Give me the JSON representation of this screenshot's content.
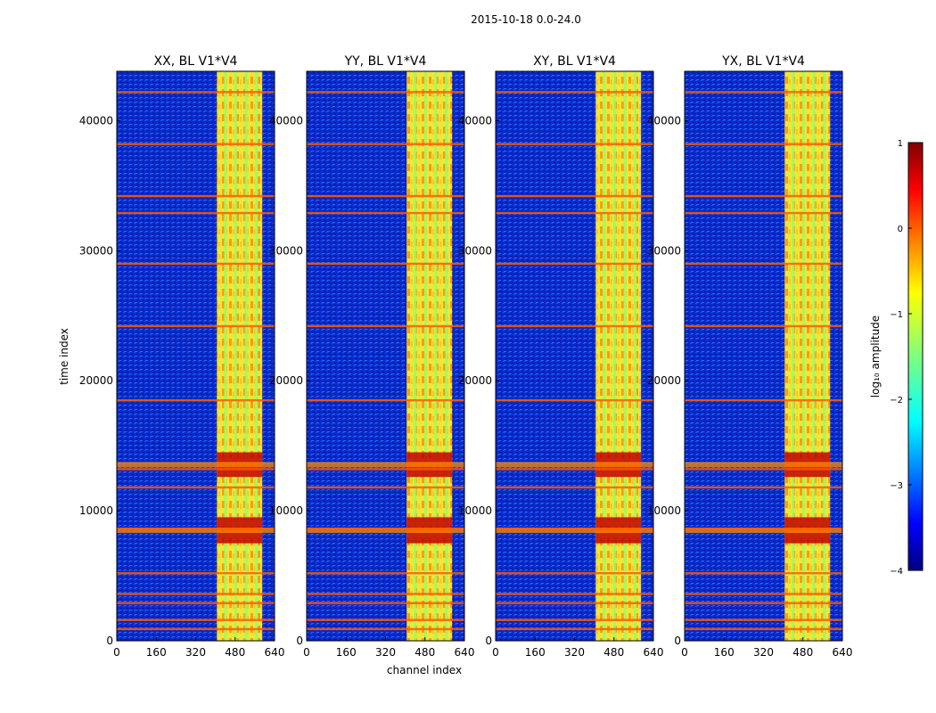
{
  "suptitle": "2015-10-18 0.0-24.0",
  "colors": {
    "background": "#0a1eb4",
    "band": "#e8ee3a",
    "hot": "#c20000",
    "stripe": "#ff5a00"
  },
  "chart_data": {
    "type": "heatmap",
    "xlabel": "channel index",
    "ylabel": "time index",
    "xlim": [
      0,
      640
    ],
    "ylim": [
      0,
      43800
    ],
    "xticks": [
      0,
      160,
      320,
      480,
      640
    ],
    "yticks": [
      0,
      10000,
      20000,
      30000,
      40000
    ],
    "panels": [
      {
        "title": "XX, BL V1*V4",
        "band_start": 406,
        "band_end": 590
      },
      {
        "title": "YY, BL V1*V4",
        "band_start": 406,
        "band_end": 590
      },
      {
        "title": "XY, BL V1*V4",
        "band_start": 406,
        "band_end": 590
      },
      {
        "title": "YX, BL V1*V4",
        "band_start": 406,
        "band_end": 590
      }
    ],
    "horizontal_stripes_time": [
      900,
      1600,
      2900,
      3600,
      5200,
      8600,
      11800,
      13200,
      18500,
      24200,
      29000,
      32900,
      34200,
      38200,
      42200
    ],
    "hot_regions_time": [
      [
        7500,
        9500
      ],
      [
        12600,
        14500
      ]
    ],
    "colorbar": {
      "label": "log₁₀ amplitude",
      "min": -4,
      "max": 1,
      "ticks": [
        "1",
        "0",
        "−1",
        "−2",
        "−3",
        "−4"
      ],
      "colormap": "jet"
    }
  }
}
